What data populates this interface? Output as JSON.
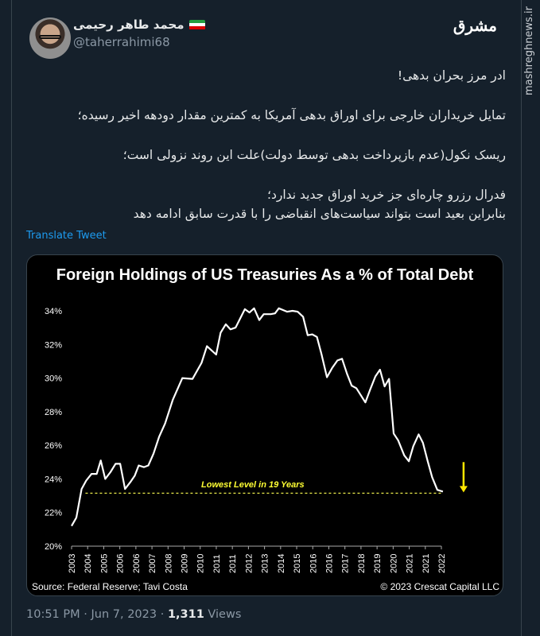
{
  "author": {
    "display_name": "محمد طاهر رحیمی",
    "handle": "@taherrahimi68",
    "flag_colors": [
      "#239f40",
      "#ffffff",
      "#da0000"
    ]
  },
  "watermark": {
    "logo": "مشرق",
    "site": "mashreghnews.ir"
  },
  "tweet": {
    "lines": [
      "ادر مرز بحران بدهی!",
      "تمایل خریداران خارجی برای اوراق بدهی آمریکا به کمترین مقدار دودهه اخیر رسیده؛",
      "ریسک نکول(عدم بازپرداخت بدهی توسط دولت)علت این روند نزولی است؛",
      "فدرال رزرو چاره‌ای جز خرید اوراق جدید ندارد؛",
      "بنابراین بعید است بتواند سیاست‌های انقباضی را با قدرت سابق ادامه دهد"
    ],
    "translate_label": "Translate Tweet"
  },
  "chart_data": {
    "type": "line",
    "title": "Foreign Holdings of US Treasuries As a % of Total Debt",
    "xlabel": "",
    "ylabel": "",
    "ylim": [
      20,
      34
    ],
    "yticks": [
      "20%",
      "22%",
      "24%",
      "26%",
      "28%",
      "30%",
      "32%",
      "34%"
    ],
    "xlim": [
      2003,
      2023
    ],
    "xticks": [
      "2003",
      "2004",
      "2005",
      "2006",
      "2006",
      "2007",
      "2008",
      "2009",
      "2010",
      "2011",
      "2011",
      "2012",
      "2013",
      "2014",
      "2015",
      "2016",
      "2016",
      "2017",
      "2018",
      "2019",
      "2020",
      "2021",
      "2021",
      "2022"
    ],
    "grid": false,
    "line_color": "#ffffff",
    "series": [
      {
        "x": [
          2003.0,
          2003.26,
          2003.54,
          2003.79,
          2004.08,
          2004.36,
          2004.58,
          2004.82,
          2005.1,
          2005.38,
          2005.63,
          2005.89,
          2006.17,
          2006.42,
          2006.63,
          2006.91,
          2007.15,
          2007.43,
          2007.73,
          2008.06,
          2008.47,
          2008.99,
          2009.54,
          2010.03,
          2010.32,
          2010.82,
          2011.06,
          2011.34,
          2011.59,
          2011.87,
          2012.37,
          2012.62,
          2012.87,
          2013.15,
          2013.39,
          2013.77,
          2014.0,
          2014.21,
          2014.66,
          2014.95,
          2015.23,
          2015.52,
          2015.77,
          2016.02,
          2016.27,
          2016.51,
          2016.81,
          2017.09,
          2017.38,
          2017.63,
          2017.9,
          2018.15,
          2018.4,
          2018.89,
          2019.14,
          2019.43,
          2019.68,
          2019.93,
          2020.17,
          2020.42,
          2020.66,
          2020.99,
          2021.24,
          2021.48,
          2021.77,
          2022.0,
          2022.26,
          2022.5,
          2022.78,
          2023.08
        ],
        "y": [
          21.2,
          21.7,
          23.4,
          23.9,
          24.3,
          24.3,
          25.1,
          24.0,
          24.4,
          24.9,
          24.9,
          23.4,
          23.8,
          24.2,
          24.8,
          24.7,
          24.8,
          25.5,
          26.5,
          27.3,
          28.7,
          30.0,
          29.95,
          30.9,
          31.9,
          31.4,
          32.7,
          33.2,
          32.9,
          33.0,
          34.1,
          33.9,
          34.15,
          33.45,
          33.8,
          33.8,
          33.85,
          34.15,
          33.95,
          34.0,
          33.95,
          33.65,
          32.55,
          32.6,
          32.45,
          31.45,
          30.05,
          30.6,
          31.05,
          31.15,
          30.25,
          29.55,
          29.4,
          28.55,
          29.3,
          30.1,
          30.5,
          29.5,
          29.95,
          26.7,
          26.3,
          25.4,
          25.05,
          25.95,
          26.65,
          26.15,
          25.05,
          24.1,
          23.35,
          23.25
        ]
      }
    ],
    "reference_line": {
      "y": 23.15,
      "x_from": 2003.75,
      "x_to": 2023.0,
      "color": "#e8e84a",
      "style": "dashed"
    },
    "annotation": {
      "text": "Lowest Level in 19 Years",
      "x": 2012.8,
      "y": 23.5,
      "color": "#ffff33"
    },
    "arrow": {
      "x": 2024.2,
      "y_from": 25.0,
      "y_to": 23.2,
      "color": "#ffe600",
      "direction": "down"
    },
    "source": "Source: Federal Reserve; Tavi Costa",
    "copyright": "© 2023 Crescat Capital LLC"
  },
  "footer": {
    "time": "10:51 PM",
    "date": "Jun 7, 2023",
    "separator": "·",
    "views_count": "1,311",
    "views_label": "Views"
  }
}
